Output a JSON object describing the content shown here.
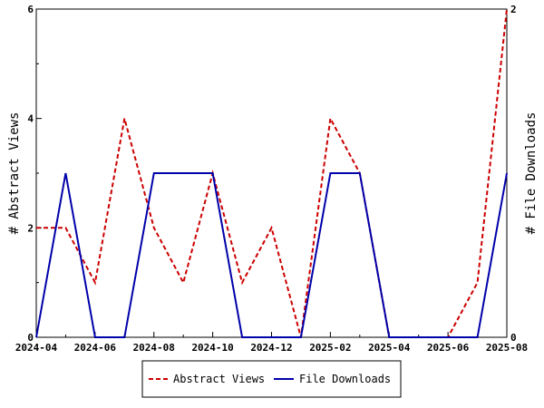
{
  "chart_data": {
    "type": "line",
    "x": [
      "2024-04",
      "2024-05",
      "2024-06",
      "2024-07",
      "2024-08",
      "2024-09",
      "2024-10",
      "2024-11",
      "2024-12",
      "2025-01",
      "2025-02",
      "2025-03",
      "2025-04",
      "2025-05",
      "2025-06",
      "2025-07",
      "2025-08"
    ],
    "x_tick_labels": [
      "2024-04",
      "2024-06",
      "2024-08",
      "2024-10",
      "2024-12",
      "2025-02",
      "2025-04",
      "2025-06",
      "2025-08"
    ],
    "series": [
      {
        "name": "Abstract Views",
        "axis": "left",
        "color": "#cc0000",
        "style": "dashed",
        "values": [
          2,
          2,
          1,
          4,
          2,
          1,
          3,
          1,
          2,
          0,
          4,
          3,
          0,
          0,
          0,
          1,
          6
        ]
      },
      {
        "name": "File Downloads",
        "axis": "right",
        "color": "#0000aa",
        "style": "solid",
        "values": [
          0,
          1,
          0,
          0,
          1,
          1,
          1,
          0,
          0,
          0,
          1,
          1,
          0,
          0,
          0,
          0,
          1
        ]
      }
    ],
    "ylabel_left": "# Abstract Views",
    "ylabel_right": "# File Downloads",
    "ylim_left": [
      0,
      6
    ],
    "yticks_left": [
      "0",
      "2",
      "4",
      "6"
    ],
    "ylim_right": [
      0,
      2
    ],
    "yticks_right": [
      "0",
      "2"
    ],
    "legend_position": "bottom-center",
    "grid": false
  }
}
